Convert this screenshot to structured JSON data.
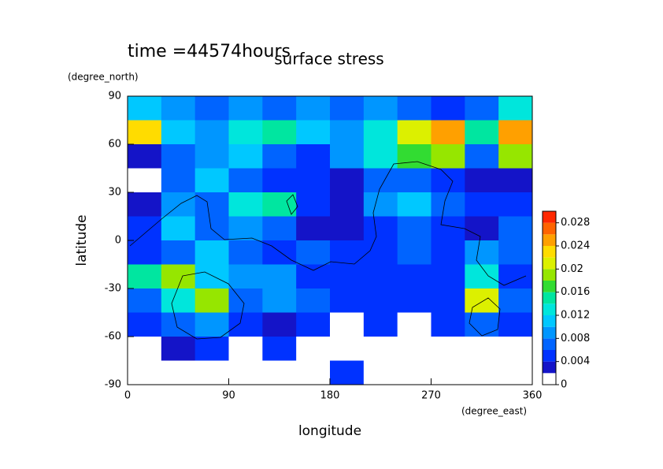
{
  "chart_data": {
    "type": "heatmap",
    "title": "surface stress",
    "subtitle": "time =44574hours",
    "x_label": "longitude",
    "x_unit": "(degree_east)",
    "y_label": "latitude",
    "y_unit": "(degree_north)",
    "xlim": [
      0,
      360
    ],
    "xticks": [
      0,
      90,
      180,
      270,
      360
    ],
    "ylim": [
      -90,
      90
    ],
    "yticks": [
      -90,
      -60,
      -30,
      0,
      30,
      60,
      90
    ],
    "x": [
      15,
      45,
      75,
      105,
      135,
      165,
      195,
      225,
      255,
      285,
      315,
      345
    ],
    "y": [
      82.5,
      67.5,
      52.5,
      37.5,
      22.5,
      7.5,
      -7.5,
      -22.5,
      -37.5,
      -52.5,
      -67.5,
      -82.5
    ],
    "z": [
      [
        0.01,
        0.008,
        0.006,
        0.008,
        0.006,
        0.008,
        0.006,
        0.008,
        0.006,
        0.004,
        0.006,
        0.012
      ],
      [
        0.022,
        0.01,
        0.008,
        0.012,
        0.014,
        0.01,
        0.008,
        0.012,
        0.02,
        0.024,
        0.014,
        0.024
      ],
      [
        0.002,
        0.006,
        0.008,
        0.01,
        0.006,
        0.004,
        0.008,
        0.012,
        0.016,
        0.018,
        0.006,
        0.018
      ],
      [
        0.001,
        0.006,
        0.01,
        0.006,
        0.004,
        0.004,
        0.002,
        0.006,
        0.006,
        0.004,
        0.002,
        0.002
      ],
      [
        0.002,
        0.008,
        0.006,
        0.012,
        0.014,
        0.004,
        0.002,
        0.008,
        0.01,
        0.006,
        0.004,
        0.004
      ],
      [
        0.004,
        0.01,
        0.006,
        0.008,
        0.006,
        0.002,
        0.002,
        0.004,
        0.006,
        0.004,
        0.002,
        0.006
      ],
      [
        0.004,
        0.006,
        0.01,
        0.006,
        0.004,
        0.006,
        0.004,
        0.004,
        0.006,
        0.004,
        0.008,
        0.006
      ],
      [
        0.014,
        0.018,
        0.01,
        0.008,
        0.008,
        0.004,
        0.004,
        0.004,
        0.004,
        0.004,
        0.012,
        0.004
      ],
      [
        0.006,
        0.012,
        0.018,
        0.006,
        0.008,
        0.006,
        0.004,
        0.004,
        0.004,
        0.004,
        0.02,
        0.006
      ],
      [
        0.004,
        0.006,
        0.008,
        0.004,
        0.002,
        0.004,
        0.001,
        0.004,
        0.001,
        0.004,
        0.006,
        0.004
      ],
      [
        0.001,
        0.002,
        0.004,
        0.001,
        0.004,
        0.001,
        0.001,
        0.001,
        0.001,
        0.001,
        0.001,
        0.001
      ],
      [
        0.001,
        0.001,
        0.001,
        0.001,
        0.001,
        0.001,
        0.004,
        0.001,
        0.001,
        0.001,
        0.001,
        0.001
      ]
    ],
    "levels": [
      0,
      0.002,
      0.004,
      0.006,
      0.008,
      0.01,
      0.012,
      0.014,
      0.016,
      0.018,
      0.02,
      0.022,
      0.024,
      0.026,
      0.028,
      0.03
    ],
    "colors": [
      "#ffffff",
      "#1414c8",
      "#0032ff",
      "#0064ff",
      "#0096ff",
      "#00c8ff",
      "#00e6dc",
      "#00e6a0",
      "#32dc32",
      "#96e600",
      "#dcf000",
      "#ffdc00",
      "#ffa000",
      "#ff6400",
      "#ff2800"
    ],
    "zlim": [
      0,
      0.03
    ],
    "zticks": [
      0,
      0.004,
      0.008,
      0.012,
      0.016,
      0.02,
      0.024,
      0.028
    ]
  }
}
